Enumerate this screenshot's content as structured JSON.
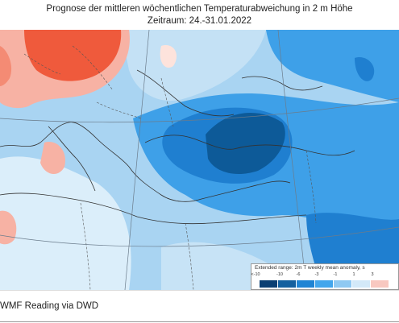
{
  "header": {
    "title": "Prognose der mittleren wöchentlichen Temperaturabweichung in 2 m Höhe",
    "subtitle": "Zeitraum: 24.-31.01.2022"
  },
  "map": {
    "region": "Mittelmeerraum, Südosteuropa, Nordafrika",
    "anomaly_pattern": "kalt über Balkan, Ägäis und Türkei; warm über Nord-/Mitteleuropa",
    "colors": {
      "strong_warm": "#ef5a3c",
      "warm": "#f7b2a4",
      "slight_warm": "#fde3dc",
      "neutral": "#dbeefa",
      "slight_cold": "#a9d4f2",
      "cold": "#3ea0e8",
      "colder": "#1f7fd0",
      "very_cold": "#0d5a98"
    }
  },
  "legend": {
    "title": "Extended range: 2m T weekly mean anomaly, s",
    "ticks": [
      "<-10",
      "-10",
      "-6",
      "-3",
      "-1",
      "1",
      "3"
    ],
    "swatch_colors": [
      "#0b3f73",
      "#14609f",
      "#1f84d4",
      "#43a6ec",
      "#8fc9f2",
      "#d3e9f8",
      "#f8c8c0",
      "#ffffff"
    ]
  },
  "footer": {
    "credit": "WMF Reading via DWD"
  }
}
